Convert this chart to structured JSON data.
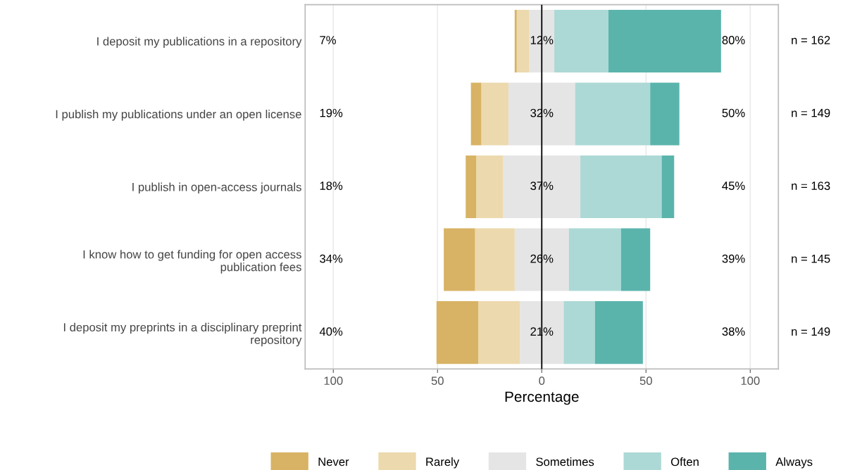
{
  "chart_data": {
    "type": "bar",
    "orientation": "horizontal",
    "stacked": true,
    "xlabel": "Percentage",
    "categories": [
      "I deposit my publications in a repository",
      "I publish my publications under an open license",
      "I publish in open-access journals",
      "I know how to get funding for open access\npublication fees",
      "I deposit my preprints in a disciplinary preprint\nrepository"
    ],
    "series": [
      {
        "color": "#e5e5e5",
        "values": [
          -6,
          -16,
          -18.5,
          -13,
          -10.5
        ]
      },
      {
        "name": "Rarely",
        "color": "#ecd9ad",
        "values": [
          -6,
          -13,
          -13,
          -19,
          -20
        ]
      },
      {
        "name": "Never",
        "color": "#d8b365",
        "values": [
          -1,
          -5,
          -5,
          -15,
          -20
        ]
      },
      {
        "name": "Sometimes",
        "color": "#e5e5e5",
        "values": [
          6,
          16,
          18.5,
          13,
          10.5
        ]
      },
      {
        "name": "Often",
        "color": "#acd9d5",
        "values": [
          26,
          36,
          39,
          25,
          15
        ]
      },
      {
        "name": "Always",
        "color": "#5ab4ac",
        "values": [
          54,
          14,
          6,
          14,
          23
        ]
      }
    ],
    "xlim": [
      -113.5,
      113.5
    ],
    "xticks": [
      {
        "value": -100,
        "label": "100"
      },
      {
        "value": -50,
        "label": "50"
      },
      0,
      50,
      100
    ],
    "ref_lines": [
      {
        "axis": "x",
        "value": 0,
        "color": "#000000"
      }
    ],
    "grid": "x",
    "legend": "bottom",
    "annotations": [
      "7%",
      "12%",
      "80%",
      "n = 162",
      "19%",
      "32%",
      "50%",
      "n = 149",
      "18%",
      "37%",
      "45%",
      "n = 163",
      "34%",
      "26%",
      "39%",
      "n = 145",
      "40%",
      "21%",
      "38%",
      "n = 149"
    ]
  }
}
